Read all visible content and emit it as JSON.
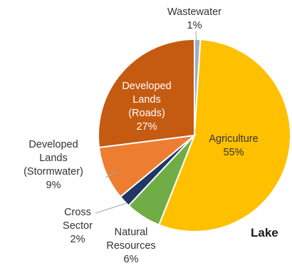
{
  "chart_data": {
    "type": "pie",
    "slices": [
      {
        "name": "Wastewater",
        "value": 1,
        "label_lines": [
          "Wastewater",
          "1%"
        ],
        "color": "#9daec4"
      },
      {
        "name": "Agriculture",
        "value": 55,
        "label_lines": [
          "Agriculture",
          "55%"
        ],
        "color": "#ffc000"
      },
      {
        "name": "Natural Resources",
        "value": 6,
        "label_lines": [
          "Natural",
          "Resources",
          "6%"
        ],
        "color": "#70ad47"
      },
      {
        "name": "Cross Sector",
        "value": 2,
        "label_lines": [
          "Cross",
          "Sector",
          "2%"
        ],
        "color": "#1f3864"
      },
      {
        "name": "Developed Lands (Stormwater)",
        "value": 9,
        "label_lines": [
          "Developed",
          "Lands",
          "(Stormwater)",
          "9%"
        ],
        "color": "#ed7d31"
      },
      {
        "name": "Developed Lands (Roads)",
        "value": 27,
        "label_lines": [
          "Developed",
          "Lands",
          "(Roads)",
          "27%"
        ],
        "color": "#c55a11"
      }
    ]
  },
  "side_text": "Lake"
}
